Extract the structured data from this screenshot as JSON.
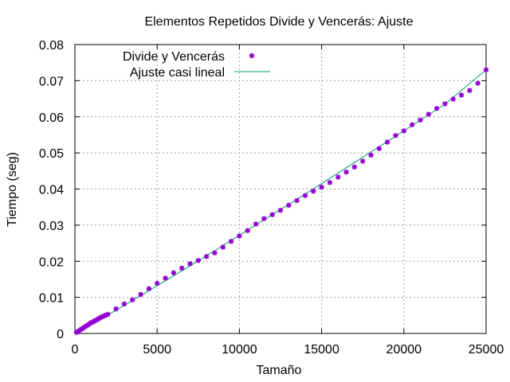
{
  "chart_data": {
    "type": "scatter",
    "title": "Elementos Repetidos Divide y Vencerás: Ajuste",
    "xlabel": "Tamaño",
    "ylabel": "Tiempo (seg)",
    "xlim": [
      0,
      25000
    ],
    "ylim": [
      0,
      0.08
    ],
    "x_ticks": [
      0,
      5000,
      10000,
      15000,
      20000,
      25000
    ],
    "x_tick_labels": [
      "0",
      "5000",
      "10000",
      "15000",
      "20000",
      "25000"
    ],
    "y_ticks": [
      0,
      0.01,
      0.02,
      0.03,
      0.04,
      0.05,
      0.06,
      0.07,
      0.08
    ],
    "y_tick_labels": [
      "0",
      "0.01",
      "0.02",
      "0.03",
      "0.04",
      "0.05",
      "0.06",
      "0.07",
      "0.08"
    ],
    "grid": true,
    "legend_position": "top-left",
    "series": [
      {
        "name": "Divide y Vencerás",
        "kind": "points",
        "color": "#9400d3",
        "x": [
          100,
          200,
          300,
          400,
          500,
          600,
          700,
          800,
          900,
          1000,
          1100,
          1200,
          1300,
          1400,
          1500,
          1600,
          1700,
          1800,
          1900,
          2000,
          2500,
          3000,
          3500,
          4000,
          4500,
          5000,
          5500,
          6000,
          6500,
          7000,
          7500,
          8000,
          8500,
          9000,
          9500,
          10000,
          10500,
          11000,
          11500,
          12000,
          12500,
          13000,
          13500,
          14000,
          14500,
          15000,
          15500,
          16000,
          16500,
          17000,
          17500,
          18000,
          18500,
          19000,
          19500,
          20000,
          20500,
          21000,
          21500,
          22000,
          22500,
          23000,
          23500,
          24000,
          24500,
          25000
        ],
        "y": [
          0.0003,
          0.0006,
          0.0009,
          0.0012,
          0.0015,
          0.0018,
          0.0021,
          0.0024,
          0.0027,
          0.003,
          0.0032,
          0.0035,
          0.0037,
          0.004,
          0.0042,
          0.0045,
          0.0047,
          0.0049,
          0.0051,
          0.0053,
          0.0068,
          0.0082,
          0.0093,
          0.0108,
          0.0124,
          0.0139,
          0.0153,
          0.0168,
          0.0181,
          0.0193,
          0.0202,
          0.0213,
          0.0223,
          0.0239,
          0.0255,
          0.027,
          0.0285,
          0.0303,
          0.0318,
          0.0329,
          0.0341,
          0.0355,
          0.0368,
          0.0382,
          0.0394,
          0.0405,
          0.0418,
          0.0433,
          0.0447,
          0.0461,
          0.0477,
          0.0494,
          0.0512,
          0.053,
          0.0548,
          0.0561,
          0.0578,
          0.0591,
          0.0607,
          0.0623,
          0.0636,
          0.0649,
          0.066,
          0.0673,
          0.0693,
          0.073
        ]
      },
      {
        "name": "Ajuste casi lineal",
        "kind": "line",
        "color": "#009e73",
        "x": [
          0,
          2500,
          5000,
          7500,
          10000,
          12500,
          15000,
          17500,
          20000,
          22500,
          25000
        ],
        "y": [
          0.0,
          0.0064,
          0.0132,
          0.0201,
          0.0272,
          0.0343,
          0.0415,
          0.0488,
          0.0561,
          0.0635,
          0.073
        ]
      }
    ]
  }
}
